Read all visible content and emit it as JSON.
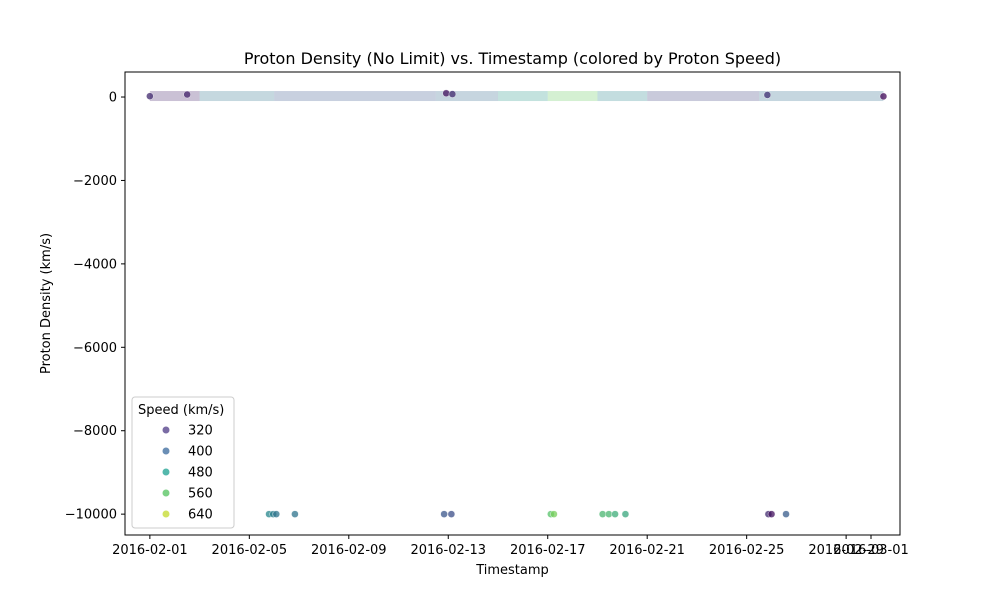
{
  "chart_data": {
    "type": "scatter",
    "title": "Proton Density (No Limit) vs. Timestamp (colored by Proton Speed)",
    "xlabel": "Timestamp",
    "ylabel": "Proton Density (km/s)",
    "xlim": [
      "2016-01-31T00:00",
      "2016-03-02T04:00"
    ],
    "ylim": [
      -10500,
      600
    ],
    "xticks": [
      "2016-02-01",
      "2016-02-05",
      "2016-02-09",
      "2016-02-13",
      "2016-02-17",
      "2016-02-21",
      "2016-02-25",
      "2016-02-29",
      "2016-03-01"
    ],
    "yticks": [
      0,
      -2000,
      -4000,
      -6000,
      -8000,
      -10000
    ],
    "legend": {
      "title": "Speed (km/s)",
      "position": "lower-left",
      "entries": [
        {
          "label": "320",
          "color": "#6b5b9a"
        },
        {
          "label": "400",
          "color": "#5a82ad"
        },
        {
          "label": "480",
          "color": "#41b0a3"
        },
        {
          "label": "560",
          "color": "#6fcc78"
        },
        {
          "label": "640",
          "color": "#cde04e"
        }
      ]
    },
    "colormap": "viridis",
    "speed_range": [
      280,
      700
    ],
    "baseline_band": {
      "y": 0,
      "segments": [
        {
          "start": "2016-02-01T00:00",
          "end": "2016-02-03T00:00",
          "speed": 320
        },
        {
          "start": "2016-02-03T00:00",
          "end": "2016-02-06T00:00",
          "speed": 440
        },
        {
          "start": "2016-02-06T00:00",
          "end": "2016-02-12T12:00",
          "speed": 390
        },
        {
          "start": "2016-02-12T12:00",
          "end": "2016-02-15T00:00",
          "speed": 420
        },
        {
          "start": "2016-02-15T00:00",
          "end": "2016-02-17T00:00",
          "speed": 500
        },
        {
          "start": "2016-02-17T00:00",
          "end": "2016-02-19T00:00",
          "speed": 600
        },
        {
          "start": "2016-02-19T00:00",
          "end": "2016-02-21T00:00",
          "speed": 470
        },
        {
          "start": "2016-02-21T00:00",
          "end": "2016-02-25T12:00",
          "speed": 360
        },
        {
          "start": "2016-02-25T12:00",
          "end": "2016-03-01T12:00",
          "speed": 430
        }
      ]
    },
    "points": [
      {
        "x": "2016-02-01T00:00",
        "y": 20,
        "speed": 330
      },
      {
        "x": "2016-02-02T12:00",
        "y": 60,
        "speed": 320
      },
      {
        "x": "2016-02-12T22:00",
        "y": 90,
        "speed": 300
      },
      {
        "x": "2016-02-13T04:00",
        "y": 70,
        "speed": 330
      },
      {
        "x": "2016-02-25T20:00",
        "y": 50,
        "speed": 340
      },
      {
        "x": "2016-03-01T12:00",
        "y": 15,
        "speed": 290
      },
      {
        "x": "2016-02-05T19:00",
        "y": -10000,
        "speed": 470
      },
      {
        "x": "2016-02-05T23:00",
        "y": -10000,
        "speed": 455
      },
      {
        "x": "2016-02-06T02:00",
        "y": -10000,
        "speed": 440
      },
      {
        "x": "2016-02-06T20:00",
        "y": -10000,
        "speed": 440
      },
      {
        "x": "2016-02-12T20:00",
        "y": -10000,
        "speed": 390
      },
      {
        "x": "2016-02-13T03:00",
        "y": -10000,
        "speed": 380
      },
      {
        "x": "2016-02-17T03:00",
        "y": -10000,
        "speed": 580
      },
      {
        "x": "2016-02-17T06:00",
        "y": -10000,
        "speed": 610
      },
      {
        "x": "2016-02-19T05:00",
        "y": -10000,
        "speed": 560
      },
      {
        "x": "2016-02-19T11:00",
        "y": -10000,
        "speed": 560
      },
      {
        "x": "2016-02-19T17:00",
        "y": -10000,
        "speed": 540
      },
      {
        "x": "2016-02-20T03:00",
        "y": -10000,
        "speed": 530
      },
      {
        "x": "2016-02-25T21:00",
        "y": -10000,
        "speed": 330
      },
      {
        "x": "2016-02-26T00:00",
        "y": -10000,
        "speed": 300
      },
      {
        "x": "2016-02-26T14:00",
        "y": -10000,
        "speed": 400
      }
    ],
    "grid": false
  }
}
